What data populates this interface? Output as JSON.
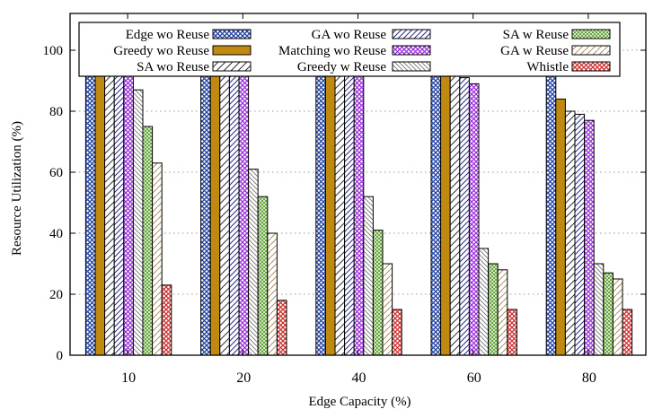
{
  "chart_data": {
    "type": "bar",
    "title": "",
    "xlabel": "Edge Capacity (%)",
    "ylabel": "Resource Utilization (%)",
    "categories": [
      "10",
      "20",
      "40",
      "60",
      "80"
    ],
    "ylim": [
      0,
      100
    ],
    "yticks": [
      0,
      20,
      40,
      60,
      80,
      100
    ],
    "grid": true,
    "legend_position": "top",
    "series": [
      {
        "name": "Edge wo Reuse",
        "values": [
          100,
          100,
          100,
          100,
          95
        ],
        "color": "#1f3fa0",
        "pattern": "crosshatch"
      },
      {
        "name": "Greedy wo Reuse",
        "values": [
          100,
          100,
          100,
          96,
          84
        ],
        "color": "#c08a10",
        "pattern": "solid"
      },
      {
        "name": "SA wo Reuse",
        "values": [
          100,
          100,
          100,
          94,
          80
        ],
        "color": "#333333",
        "pattern": "diag-up"
      },
      {
        "name": "GA wo Reuse",
        "values": [
          100,
          100,
          100,
          91,
          79
        ],
        "color": "#2a2a8a",
        "pattern": "diag-up-dense"
      },
      {
        "name": "Matching wo Reuse",
        "values": [
          100,
          100,
          100,
          89,
          77
        ],
        "color": "#9b30d9",
        "pattern": "crosshatch"
      },
      {
        "name": "Greedy w Reuse",
        "values": [
          87,
          61,
          52,
          35,
          30
        ],
        "color": "#777777",
        "pattern": "diag-down"
      },
      {
        "name": "SA w Reuse",
        "values": [
          75,
          52,
          41,
          30,
          27
        ],
        "color": "#5aa02c",
        "pattern": "crosshatch-fine"
      },
      {
        "name": "GA w Reuse",
        "values": [
          63,
          40,
          30,
          28,
          25
        ],
        "color": "#a08050",
        "pattern": "diag-up-sparse"
      },
      {
        "name": "Whistle",
        "values": [
          23,
          18,
          15,
          15,
          15
        ],
        "color": "#d03030",
        "pattern": "crosshatch"
      }
    ]
  }
}
